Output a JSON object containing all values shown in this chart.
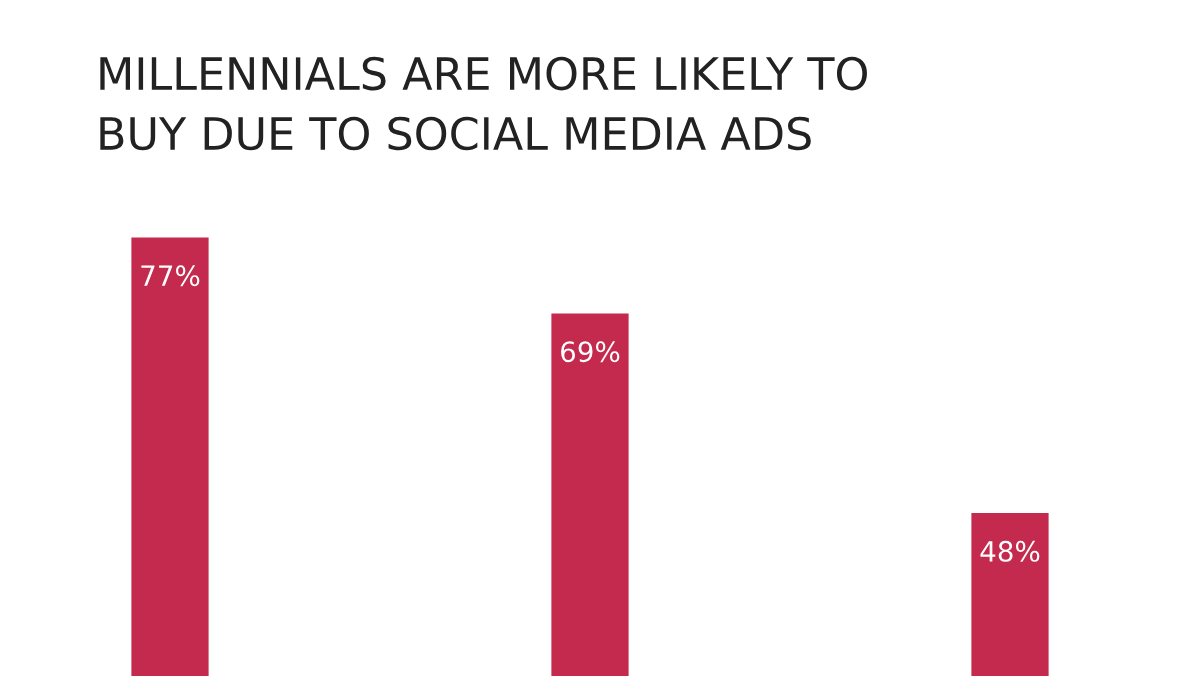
{
  "chart_data": {
    "type": "bar",
    "title": "MILLENNIALS ARE MORE LIKELY TO\nBUY DUE TO SOCIAL MEDIA ADS",
    "categories": [
      null,
      null,
      null
    ],
    "values": [
      77,
      69,
      48
    ],
    "value_labels": [
      "77%",
      "69%",
      "48%"
    ],
    "color": "#c42a4e"
  }
}
